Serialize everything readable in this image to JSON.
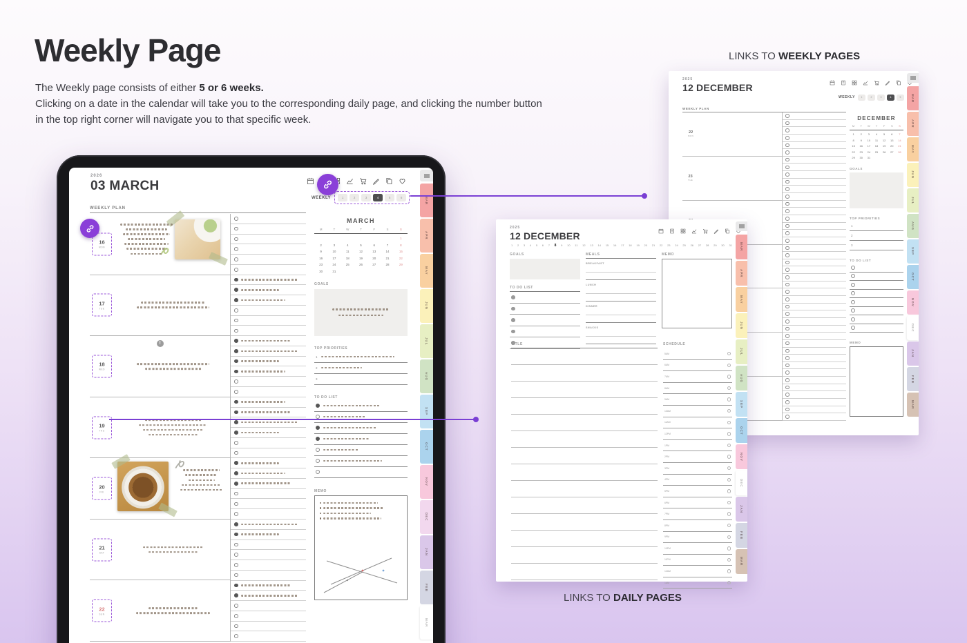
{
  "page": {
    "title": "Weekly Page",
    "description": {
      "l1": "The Weekly page consists of either ",
      "l1b": "5 or 6 weeks.",
      "l2": "Clicking on a date in the calendar will take you to the corresponding daily page, and clicking the number button",
      "l3": "in the top right corner will navigate you to that specific week."
    },
    "captions": {
      "weekly_pre": "LINKS TO ",
      "weekly_bold": "WEEKLY PAGES",
      "daily_pre": "LINKS TO ",
      "daily_bold": "DAILY PAGES"
    },
    "colors": {
      "accent_purple": "#8a3fd8",
      "connector_purple": "#7a3fd4",
      "sunday_red": "#d97f7f",
      "active_button": "#4e4e50"
    }
  },
  "toolbar_icons": [
    "calendar-icon",
    "doc-icon",
    "grid-icon",
    "chart-icon",
    "cart-icon",
    "pen-icon",
    "copy-icon",
    "heart-icon"
  ],
  "month_tabs": [
    {
      "label": "MAR",
      "color": "#f4a4a4"
    },
    {
      "label": "APR",
      "color": "#f8bfab"
    },
    {
      "label": "MAY",
      "color": "#f9d0a0"
    },
    {
      "label": "JUN",
      "color": "#fbf1ba"
    },
    {
      "label": "JUL",
      "color": "#e7efc3"
    },
    {
      "label": "AUG",
      "color": "#d0e3c4"
    },
    {
      "label": "SEP",
      "color": "#c2e1f3"
    },
    {
      "label": "OCT",
      "color": "#abd3ed"
    },
    {
      "label": "NOV",
      "color": "#f8c8dc"
    },
    {
      "label": "DEC",
      "color": "#f2d8ee"
    },
    {
      "label": "JAN",
      "color": "#dac7e9"
    },
    {
      "label": "FEB",
      "color": "#d4d6e3"
    },
    {
      "label": "MAR",
      "color": "#d6c2b4"
    }
  ],
  "tablet_page": {
    "year": "2026",
    "title": "03 MARCH",
    "weekly_label": "WEEKLY",
    "week_buttons": [
      "1",
      "2",
      "3",
      "4",
      "5",
      "6"
    ],
    "active_week_index": 3,
    "plan_label": "WEEKLY PLAN",
    "days": [
      {
        "date": "16",
        "dow": "MON",
        "note_lines": 7,
        "photo": "toast",
        "link_badge": true
      },
      {
        "date": "17",
        "dow": "TUE",
        "note_lines": 2
      },
      {
        "date": "18",
        "dow": "WED",
        "note_lines": 2,
        "alert_badge": true
      },
      {
        "date": "19",
        "dow": "THU",
        "note_lines": 4,
        "connector": true
      },
      {
        "date": "20",
        "dow": "FRI",
        "note_lines": 5,
        "photo": "soup"
      },
      {
        "date": "21",
        "dow": "SAT",
        "note_lines": 2
      },
      {
        "date": "22",
        "dow": "SUN",
        "note_lines": 2,
        "red": true
      }
    ],
    "checklist_text_counts": [
      0,
      3,
      4,
      4,
      3,
      2,
      2
    ],
    "checklist_rows_per_day": 6,
    "calendar": {
      "title": "MARCH",
      "dow": [
        "M",
        "T",
        "W",
        "T",
        "F",
        "S",
        "S"
      ],
      "weeks": [
        [
          "",
          "",
          "",
          "",
          "",
          "",
          "1"
        ],
        [
          "2",
          "3",
          "4",
          "5",
          "6",
          "7",
          "8"
        ],
        [
          "9",
          "10",
          "11",
          "12",
          "13",
          "14",
          "15"
        ],
        [
          "16",
          "17",
          "18",
          "19",
          "20",
          "21",
          "22"
        ],
        [
          "23",
          "24",
          "25",
          "26",
          "27",
          "28",
          "29"
        ],
        [
          "30",
          "31",
          "",
          "",
          "",
          "",
          ""
        ]
      ]
    },
    "sections": {
      "goals": "GOALS",
      "priorities": "TOP PRIORITIES",
      "todo": "TO DO LIST",
      "memo": "MEMO"
    },
    "priority_numbers": [
      "1",
      "2",
      "3"
    ],
    "priority_text_rows": [
      true,
      true,
      false
    ],
    "goals_note_lines": 2,
    "todo_rows": [
      {
        "filled": true,
        "text": true
      },
      {
        "filled": false,
        "text": true
      },
      {
        "filled": true,
        "text": true
      },
      {
        "filled": true,
        "text": true
      },
      {
        "filled": false,
        "text": true
      },
      {
        "filled": false,
        "text": true
      },
      {
        "filled": false,
        "text": false
      }
    ],
    "memo_note_lines": 4,
    "active_tab_index": 12
  },
  "weekly_page": {
    "year": "2025",
    "title": "12 DECEMBER",
    "weekly_label": "WEEKLY",
    "week_buttons": [
      "1",
      "2",
      "3",
      "4",
      "5"
    ],
    "active_week_index": 3,
    "plan_label": "WEEKLY PLAN",
    "days": [
      {
        "date": "22",
        "dow": "MON"
      },
      {
        "date": "23",
        "dow": "TUE"
      },
      {
        "date": "24",
        "dow": "WED"
      },
      {
        "date": "25",
        "dow": "THU"
      },
      {
        "date": "26",
        "dow": "FRI"
      },
      {
        "date": "27",
        "dow": "SAT"
      },
      {
        "date": "28",
        "dow": "SUN",
        "red": true
      }
    ],
    "checklist_rows_per_day": 6,
    "calendar": {
      "title": "DECEMBER",
      "dow": [
        "M",
        "T",
        "W",
        "T",
        "F",
        "S",
        "S"
      ],
      "weeks": [
        [
          "1",
          "2",
          "3",
          "4",
          "5",
          "6",
          "7"
        ],
        [
          "8",
          "9",
          "10",
          "11",
          "12",
          "13",
          "14"
        ],
        [
          "15",
          "16",
          "17",
          "18",
          "19",
          "20",
          "21"
        ],
        [
          "22",
          "23",
          "24",
          "25",
          "26",
          "27",
          "28"
        ],
        [
          "29",
          "30",
          "31",
          "",
          "",
          "",
          ""
        ]
      ]
    },
    "sections": {
      "goals": "GOALS",
      "priorities": "TOP PRIORITIES",
      "todo": "TO DO LIST",
      "memo": "MEMO"
    },
    "priority_numbers": [
      "1",
      "2",
      "3"
    ],
    "todo_row_count": 8,
    "active_tab_index": 9
  },
  "daily_page": {
    "year": "2025",
    "title": "12 DECEMBER",
    "day_count": 31,
    "active_day": "8",
    "labels": {
      "goals": "GOALS",
      "todo": "TO DO LIST",
      "meals": "MEALS",
      "meal_blocks": [
        "BREAKFAST",
        "LUNCH",
        "DINNER",
        "SNACKS"
      ],
      "memo": "MEMO",
      "title": "TITLE",
      "schedule": "SCHEDULE"
    },
    "todo_row_count": 5,
    "title_line_count": 14,
    "schedule_times": [
      "5AM",
      "6AM",
      "7AM",
      "8AM",
      "9AM",
      "10AM",
      "11AM",
      "12PM",
      "1PM",
      "2PM",
      "3PM",
      "4PM",
      "5PM",
      "6PM",
      "7PM",
      "8PM",
      "9PM",
      "10PM",
      "11PM",
      "12AM",
      "1AM"
    ],
    "active_tab_index": 9
  }
}
